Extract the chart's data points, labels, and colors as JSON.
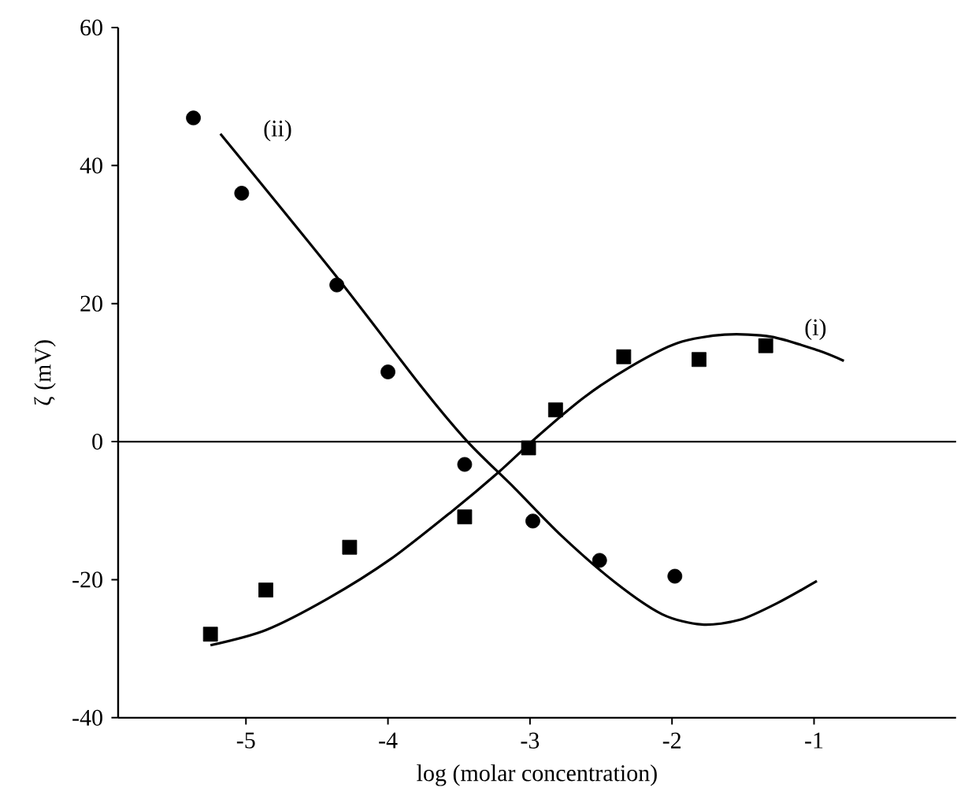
{
  "chart_data": {
    "type": "scatter",
    "xlabel": "log (molar concentration)",
    "ylabel": "ζ (mV)",
    "xlim": [
      -5.9,
      0
    ],
    "ylim": [
      -40,
      60
    ],
    "xticks": [
      -5,
      -4,
      -3,
      -2,
      -1
    ],
    "yticks": [
      -40,
      -20,
      0,
      20,
      40,
      60
    ],
    "grid": false,
    "series": [
      {
        "marker": "circle",
        "color": "#000000",
        "x": [
          -5.37,
          -5.03,
          -4.36,
          -4.0,
          -3.46,
          -2.98,
          -2.51,
          -1.98
        ],
        "values": [
          46.9,
          36.0,
          22.7,
          10.1,
          -3.3,
          -11.5,
          -17.2,
          -19.5
        ]
      },
      {
        "marker": "square",
        "color": "#000000",
        "x": [
          -5.25,
          -4.86,
          -4.27,
          -3.46,
          -3.01,
          -2.82,
          -2.34,
          -1.81,
          -1.34
        ],
        "values": [
          -27.9,
          -21.5,
          -15.3,
          -10.9,
          -0.9,
          4.6,
          12.3,
          11.9,
          13.9
        ]
      },
      {
        "type": "line",
        "name": "(ii)",
        "marker": "none",
        "color": "#000000",
        "x": [
          -5.18,
          -4.37,
          -3.77,
          -3.44,
          -3.11,
          -2.78,
          -2.4,
          -2.07,
          -1.79,
          -1.52,
          -1.25,
          -0.98
        ],
        "values": [
          44.6,
          24.1,
          8.1,
          0,
          -6.7,
          -13.6,
          -20.4,
          -25.0,
          -26.5,
          -25.8,
          -23.3,
          -20.2
        ]
      },
      {
        "type": "line",
        "name": "(i)",
        "marker": "none",
        "color": "#000000",
        "x": [
          -5.25,
          -4.86,
          -4.42,
          -3.98,
          -3.55,
          -3.22,
          -2.95,
          -2.62,
          -2.29,
          -1.96,
          -1.63,
          -1.3,
          -0.97,
          -0.79
        ],
        "values": [
          -29.5,
          -27.3,
          -22.7,
          -17.0,
          -10.1,
          -4.4,
          0.7,
          6.4,
          10.9,
          14.3,
          15.5,
          15.2,
          13.2,
          11.7
        ]
      }
    ],
    "ref_lines": [
      {
        "axis": "y",
        "value": 0,
        "color": "#000000"
      }
    ]
  }
}
